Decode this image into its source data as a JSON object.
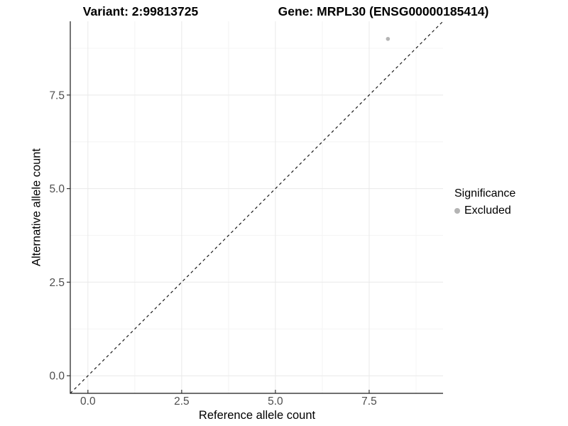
{
  "figure": {
    "title_left": "Variant: 2:99813725",
    "title_right": "Gene: MRPL30 (ENSG00000185414)"
  },
  "chart_data": {
    "type": "scatter",
    "xlabel": "Reference allele count",
    "ylabel": "Alternative allele count",
    "xlim": [
      -0.47,
      9.47
    ],
    "ylim": [
      -0.47,
      9.47
    ],
    "x_ticks": [
      0.0,
      2.5,
      5.0,
      7.5
    ],
    "y_ticks": [
      0.0,
      2.5,
      5.0,
      7.5
    ],
    "x_minor_ticks": [
      1.25,
      3.75,
      6.25,
      8.75
    ],
    "y_minor_ticks": [
      1.25,
      3.75,
      6.25,
      8.75
    ],
    "grid": true,
    "series": [
      {
        "name": "Excluded",
        "color": "#b4b4b4",
        "points": [
          {
            "x": 8,
            "y": 9
          }
        ]
      }
    ],
    "reference_line": {
      "slope": 1,
      "intercept": 0,
      "style": "dashed",
      "color": "#1a1a1a"
    },
    "legend": {
      "title": "Significance",
      "position": "right",
      "items": [
        {
          "label": "Excluded",
          "color": "#b4b4b4"
        }
      ]
    },
    "colors": {
      "grid_major": "#e9e9e9",
      "grid_minor": "#f4f4f4",
      "axis_line": "#1a1a1a",
      "tick_mark": "#333333",
      "tick_label": "#4d4d4d"
    }
  }
}
